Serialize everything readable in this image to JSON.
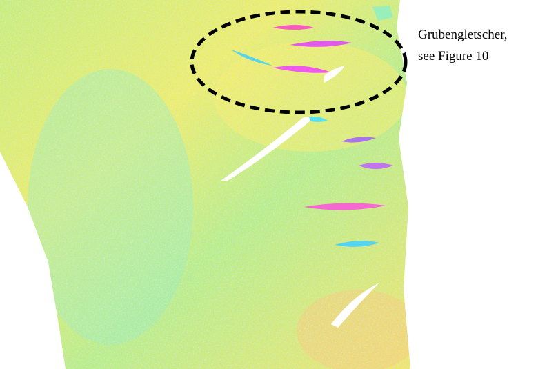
{
  "annotation": {
    "lines": [
      "Grubengletscher,",
      "see Figure 10"
    ]
  }
}
